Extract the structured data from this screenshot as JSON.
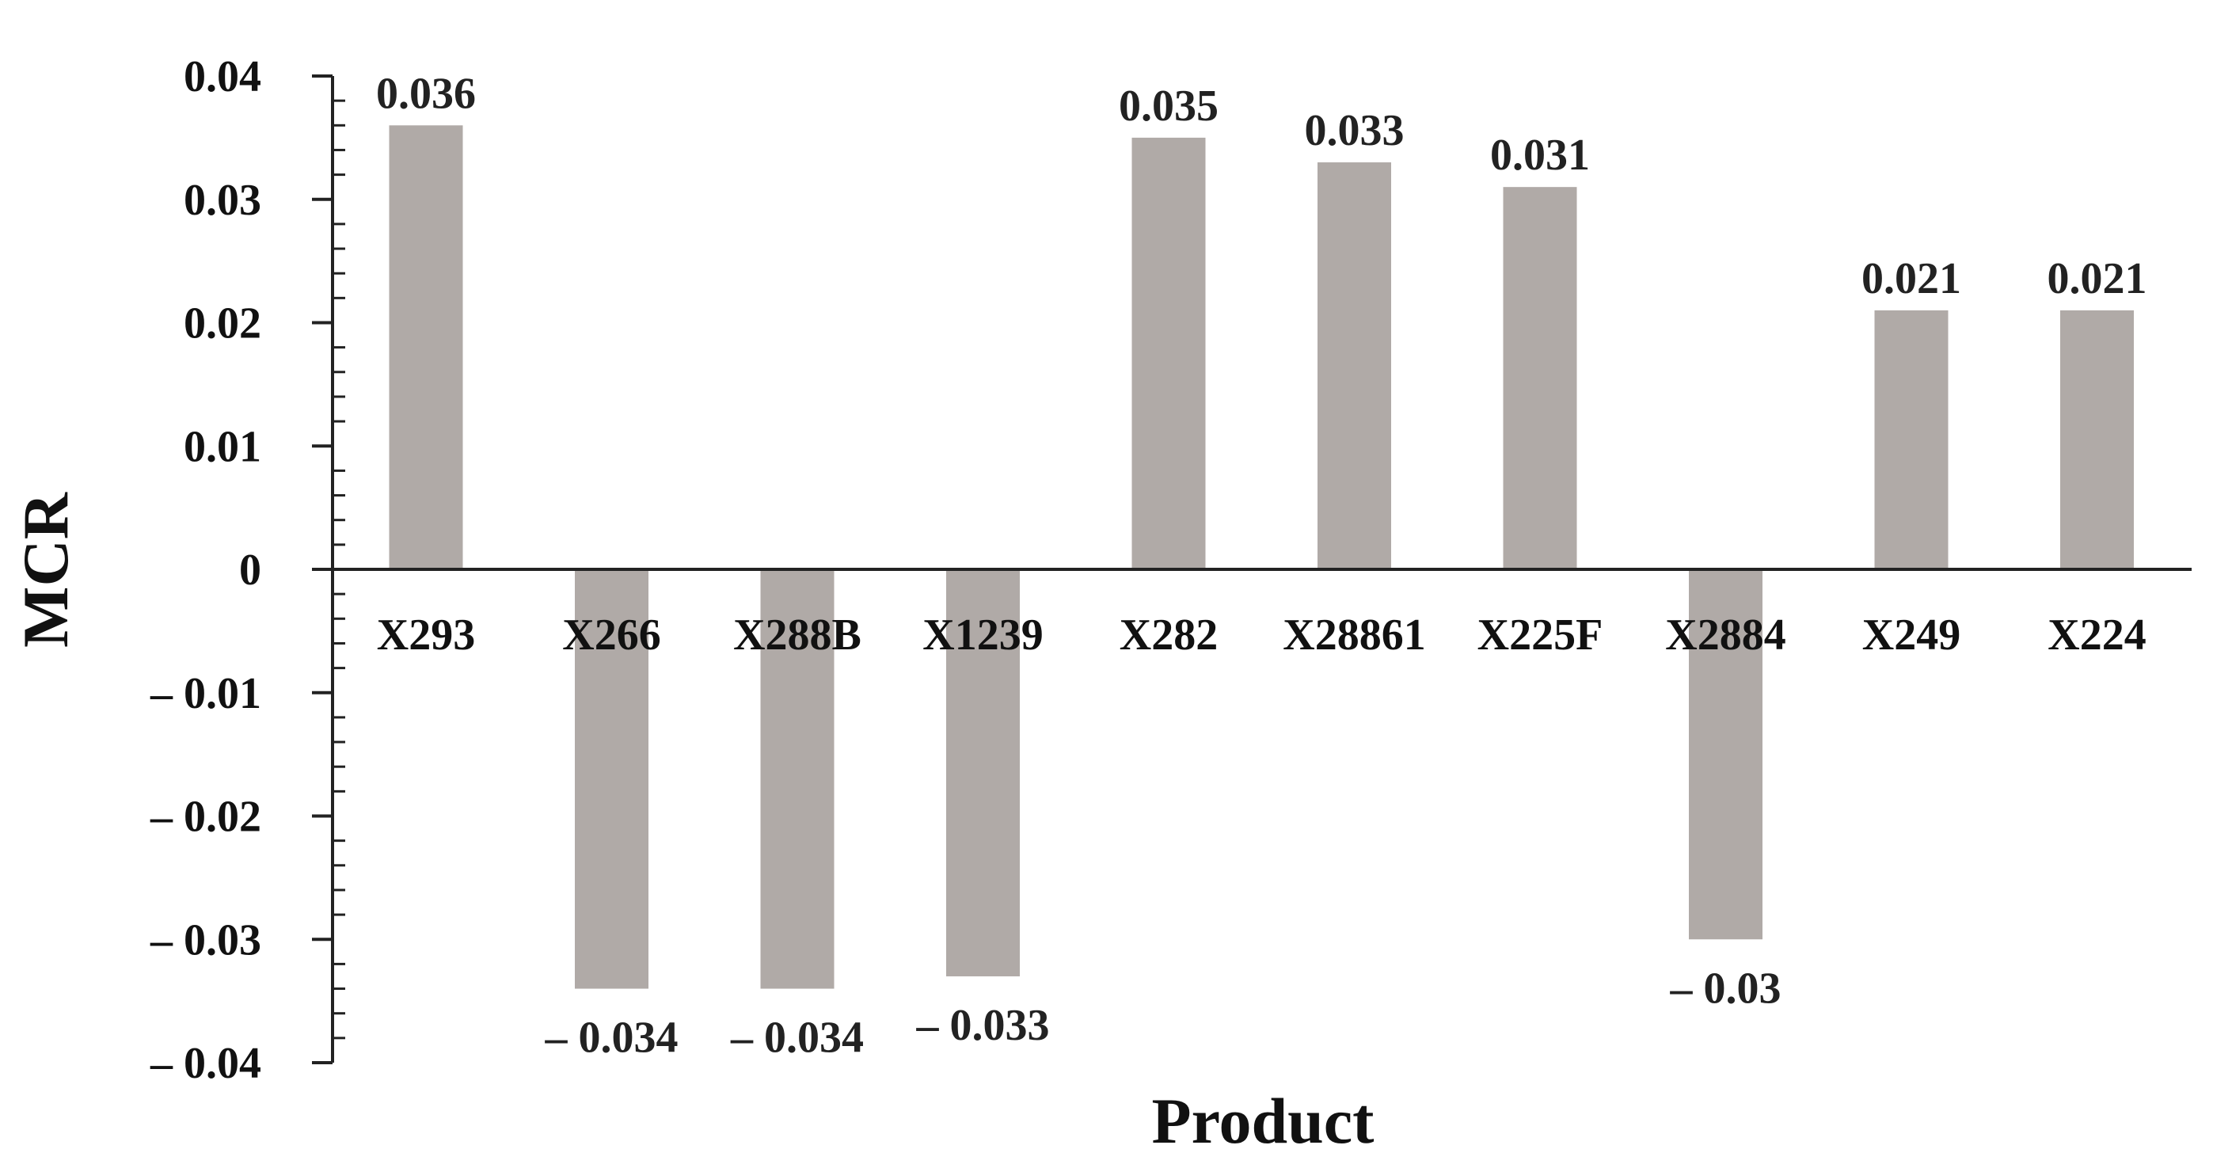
{
  "chart_data": {
    "type": "bar",
    "categories": [
      "X293",
      "X266",
      "X288B",
      "X1239",
      "X282",
      "X28861",
      "X225F",
      "X2884",
      "X249",
      "X224"
    ],
    "values": [
      0.036,
      -0.034,
      -0.034,
      -0.033,
      0.035,
      0.033,
      0.031,
      -0.03,
      0.021,
      0.021
    ],
    "data_labels": [
      "0.036",
      "– 0.034",
      "– 0.034",
      "– 0.033",
      "0.035",
      "0.033",
      "0.031",
      "– 0.03",
      "0.021",
      "0.021"
    ],
    "title": "",
    "xlabel": "Product",
    "ylabel": "MCR",
    "ylim": [
      -0.04,
      0.04
    ],
    "yticks": [
      0.04,
      0.03,
      0.02,
      0.01,
      0,
      -0.01,
      -0.02,
      -0.03,
      -0.04
    ],
    "ytick_labels": [
      "0.04",
      "0.03",
      "0.02",
      "0.01",
      "0",
      "– 0.01",
      "– 0.02",
      "– 0.03",
      "– 0.04"
    ],
    "minor_ticks_per_major": 5,
    "grid": false,
    "legend": "none",
    "bar_color": "#b0aaa7",
    "axis_color": "#222222"
  }
}
